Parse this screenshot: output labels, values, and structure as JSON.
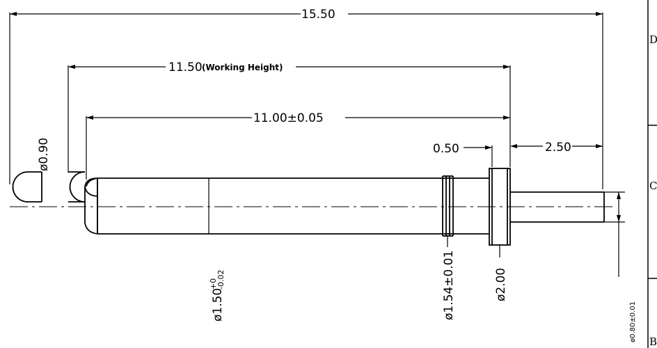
{
  "dimensions": {
    "overall_length": "15.50",
    "working_height_value": "11.50",
    "working_height_note": "(Working Height)",
    "body_length": "11.00±0.05",
    "tip_diameter": "ø0.90",
    "flange_thickness": "0.50",
    "tail_length": "2.50",
    "barrel_diameter_main": "ø1.50",
    "barrel_tol_upper": "+0",
    "barrel_tol_lower": "-0.02",
    "ring_diameter": "ø1.54±0.01",
    "flange_diameter": "ø2.00",
    "tail_diameter": "ø0.80±0.01"
  },
  "frame": {
    "zone_letters": [
      "D",
      "C",
      "B"
    ]
  }
}
